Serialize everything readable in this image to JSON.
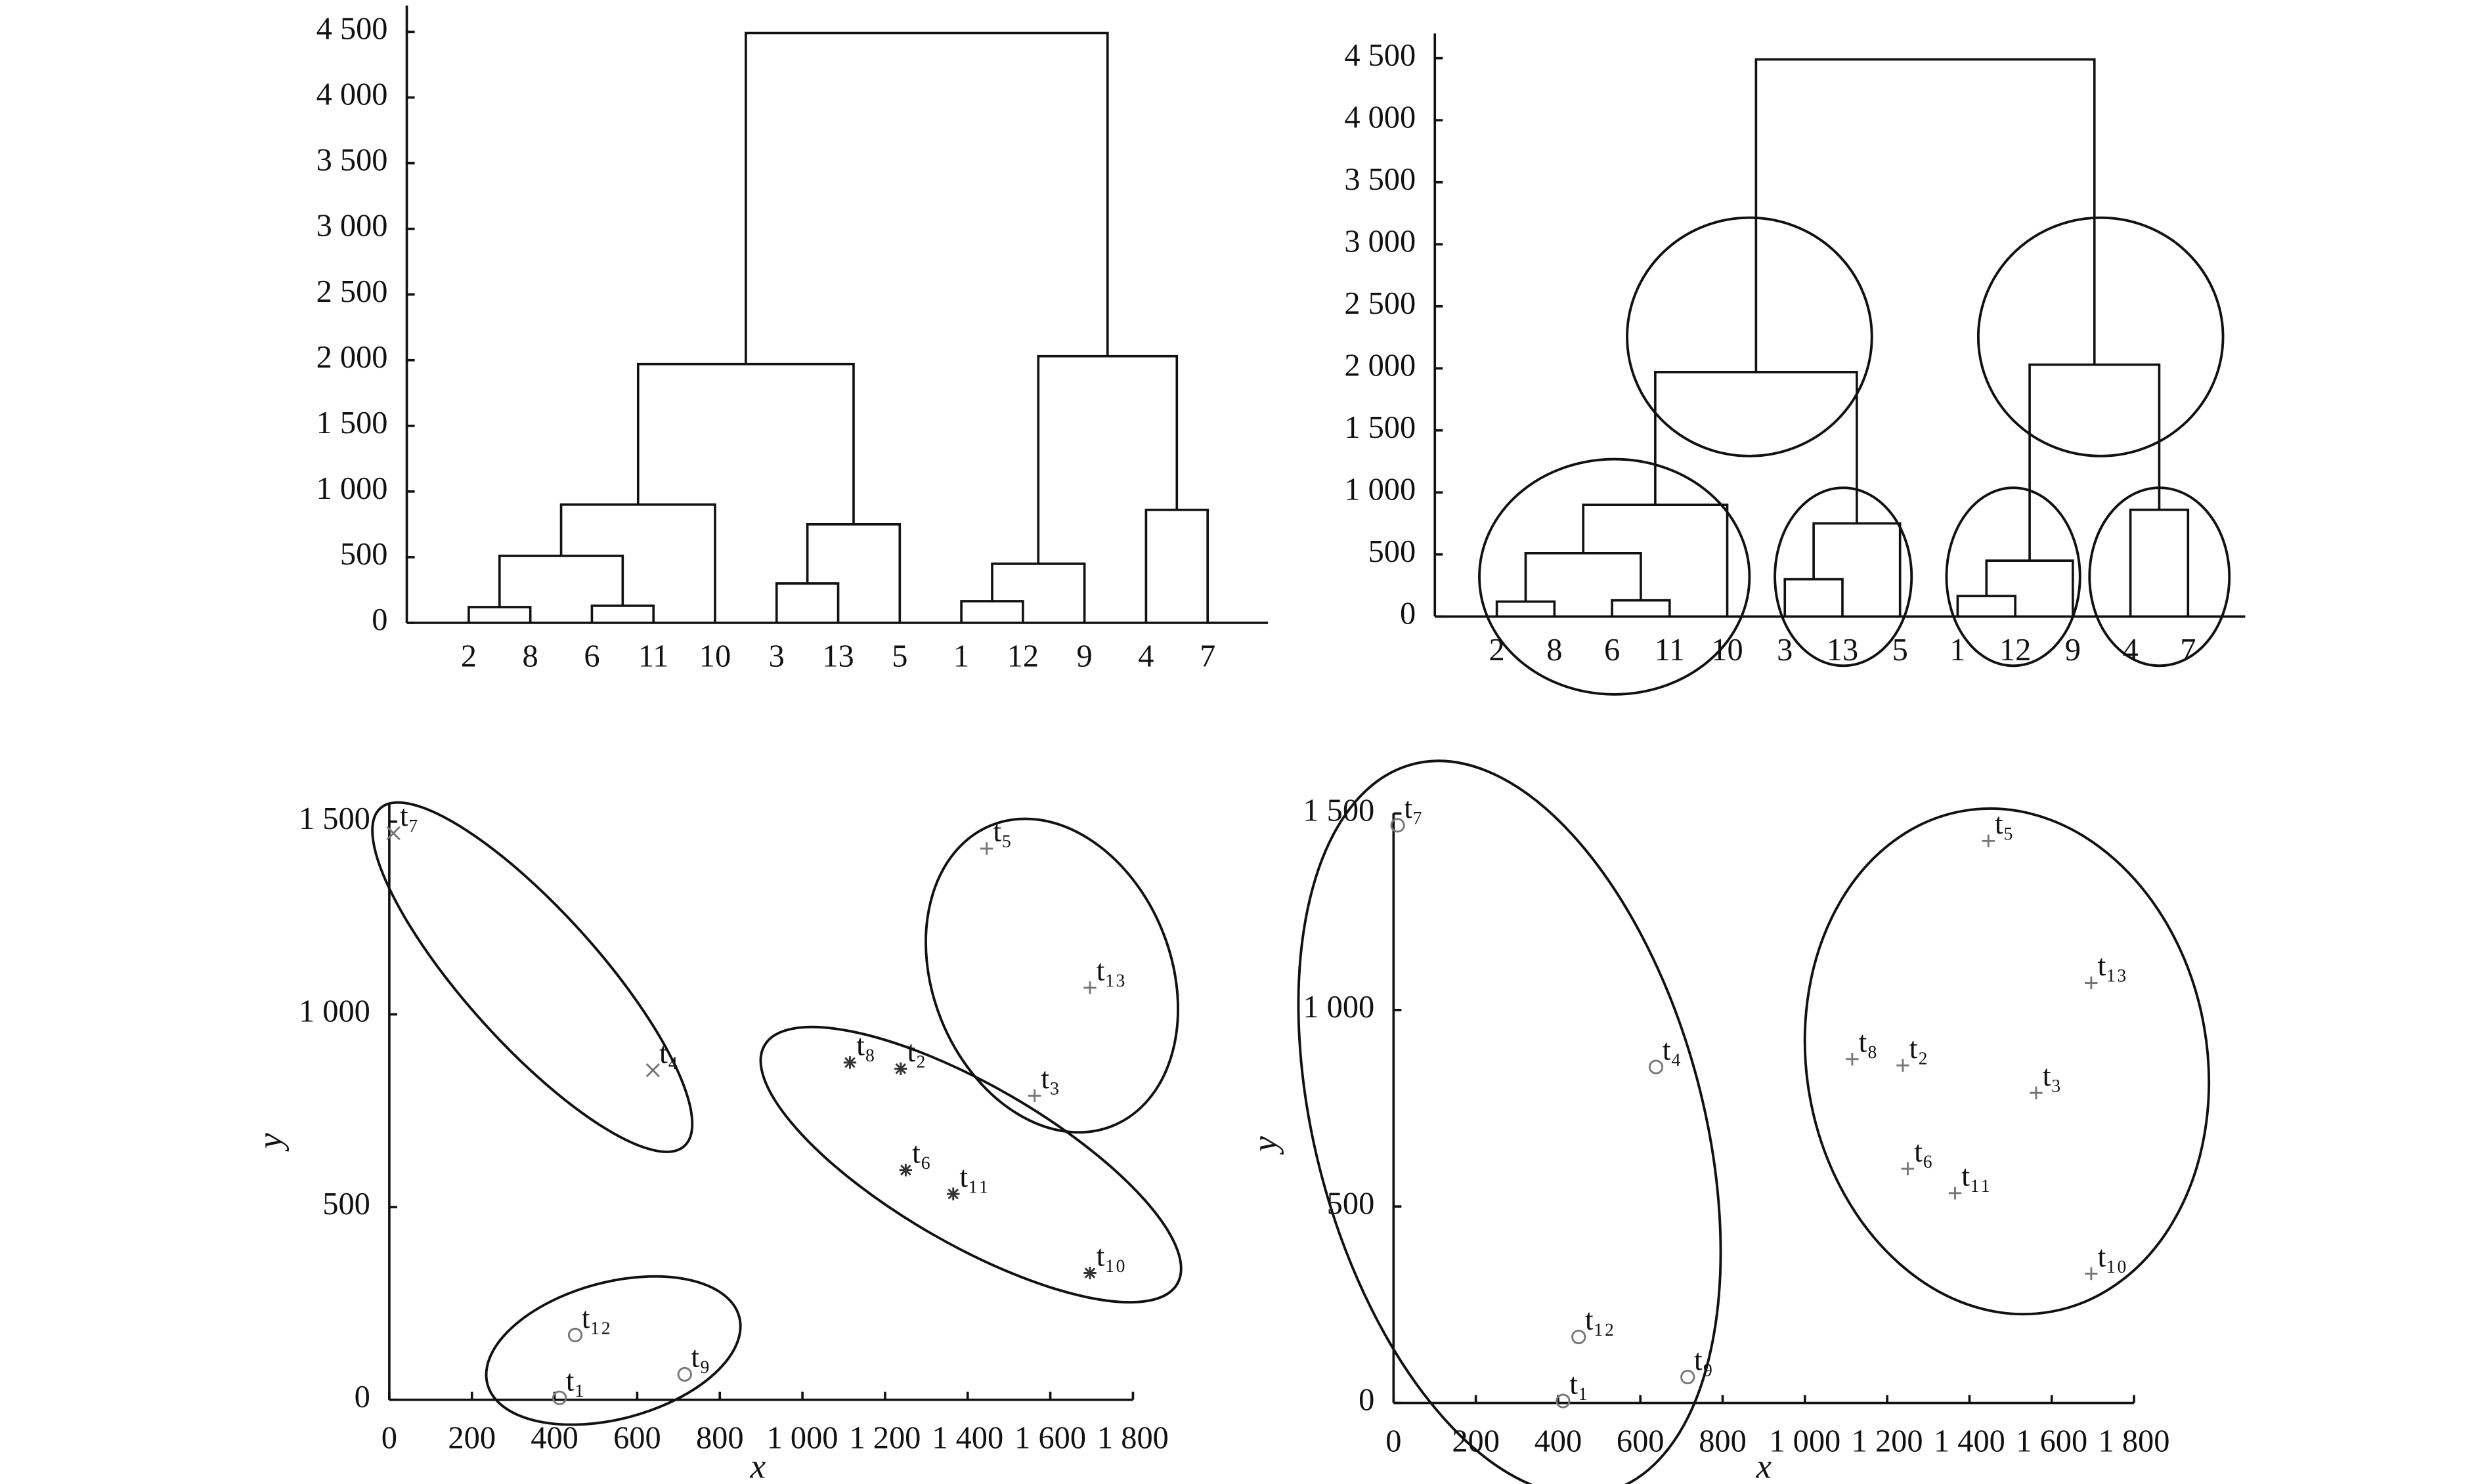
{
  "chart_data": [
    {
      "type": "dendrogram",
      "leaves": [
        "2",
        "8",
        "6",
        "11",
        "10",
        "3",
        "13",
        "5",
        "1",
        "12",
        "9",
        "4",
        "7"
      ],
      "merges": [
        [
          0,
          1,
          120
        ],
        [
          2,
          3,
          130
        ],
        [
          13,
          14,
          510
        ],
        [
          15,
          4,
          900
        ],
        [
          5,
          6,
          300
        ],
        [
          17,
          7,
          750
        ],
        [
          16,
          18,
          1970
        ],
        [
          8,
          9,
          165
        ],
        [
          20,
          10,
          450
        ],
        [
          11,
          12,
          860
        ],
        [
          21,
          22,
          2030
        ],
        [
          19,
          23,
          4490
        ]
      ],
      "ylim": [
        0,
        4700
      ],
      "yticks": [
        0,
        500,
        {
          "value": 1000,
          "label": "1 000"
        },
        {
          "value": 1500,
          "label": "1 500"
        },
        {
          "value": 2000,
          "label": "2 000"
        },
        {
          "value": 2500,
          "label": "2 500"
        },
        {
          "value": 3000,
          "label": "3 000"
        },
        {
          "value": 3500,
          "label": "3 500"
        },
        {
          "value": 4000,
          "label": "4 000"
        },
        {
          "value": 4500,
          "label": "4 500"
        }
      ],
      "color": "#111111"
    },
    {
      "type": "dendrogram",
      "leaves": [
        "2",
        "8",
        "6",
        "11",
        "10",
        "3",
        "13",
        "5",
        "1",
        "12",
        "9",
        "4",
        "7"
      ],
      "merges": [
        [
          0,
          1,
          120
        ],
        [
          2,
          3,
          130
        ],
        [
          13,
          14,
          510
        ],
        [
          15,
          4,
          900
        ],
        [
          5,
          6,
          300
        ],
        [
          17,
          7,
          750
        ],
        [
          16,
          18,
          1970
        ],
        [
          8,
          9,
          165
        ],
        [
          20,
          10,
          450
        ],
        [
          11,
          12,
          860
        ],
        [
          21,
          22,
          2030
        ],
        [
          19,
          23,
          4490
        ]
      ],
      "ylim": [
        0,
        4700
      ],
      "yticks": [
        0,
        500,
        {
          "value": 1000,
          "label": "1 000"
        },
        {
          "value": 1500,
          "label": "1 500"
        },
        {
          "value": 2000,
          "label": "2 000"
        },
        {
          "value": 2500,
          "label": "2 500"
        },
        {
          "value": 3000,
          "label": "3 000"
        },
        {
          "value": 3500,
          "label": "3 500"
        },
        {
          "value": 4000,
          "label": "4 000"
        },
        {
          "value": 4500,
          "label": "4 500"
        }
      ],
      "color": "#111111"
    },
    {
      "type": "scatter",
      "x_label": "x",
      "y_label": "y",
      "xlim": [
        0,
        1800
      ],
      "ylim": [
        0,
        1550
      ],
      "xticks": [
        0,
        200,
        400,
        600,
        800,
        {
          "value": 1000,
          "label": "1 000"
        },
        {
          "value": 1200,
          "label": "1 200"
        },
        {
          "value": 1400,
          "label": "1 400"
        },
        {
          "value": 1600,
          "label": "1 600"
        },
        {
          "value": 1800,
          "label": "1 800"
        }
      ],
      "yticks": [
        0,
        500,
        {
          "value": 1000,
          "label": "1 000"
        },
        {
          "value": 1500,
          "label": "1 500"
        }
      ],
      "series": [
        {
          "marker": "x",
          "color": "#777777",
          "labels": [
            "t₇",
            "t₄"
          ],
          "x": [
            10,
            638
          ],
          "y": [
            1470,
            855
          ]
        },
        {
          "marker": "o",
          "color": "#777777",
          "labels": [
            "t₁₂",
            "t₁",
            "t₉"
          ],
          "x": [
            450,
            412,
            715
          ],
          "y": [
            168,
            5,
            66
          ]
        },
        {
          "marker": "*",
          "color": "#333333",
          "labels": [
            "t₈",
            "t₂",
            "t₆",
            "t₁₁",
            "t₁₀"
          ],
          "x": [
            1115,
            1238,
            1250,
            1365,
            1696
          ],
          "y": [
            875,
            859,
            596,
            534,
            329
          ]
        },
        {
          "marker": "+",
          "color": "#777777",
          "labels": [
            "t₅",
            "t₁₃",
            "t₃"
          ],
          "x": [
            1446,
            1696,
            1562
          ],
          "y": [
            1430,
            1069,
            789
          ]
        }
      ]
    },
    {
      "type": "scatter",
      "x_label": "x",
      "y_label": "y",
      "xlim": [
        0,
        1800
      ],
      "ylim": [
        0,
        1500
      ],
      "xticks": [
        0,
        200,
        400,
        600,
        800,
        {
          "value": 1000,
          "label": "1 000"
        },
        {
          "value": 1200,
          "label": "1 200"
        },
        {
          "value": 1400,
          "label": "1 400"
        },
        {
          "value": 1600,
          "label": "1 600"
        },
        {
          "value": 1800,
          "label": "1 800"
        }
      ],
      "yticks": [
        0,
        500,
        {
          "value": 1000,
          "label": "1 000"
        },
        {
          "value": 1500,
          "label": "1 500"
        }
      ],
      "series": [
        {
          "marker": "o",
          "color": "#777777",
          "labels": [
            "t₇",
            "t₄",
            "t₁₂",
            "t₁",
            "t₉"
          ],
          "x": [
            10,
            638,
            450,
            412,
            715
          ],
          "y": [
            1470,
            855,
            168,
            5,
            66
          ]
        },
        {
          "marker": "+",
          "color": "#777777",
          "labels": [
            "t₅",
            "t₁₃",
            "t₈",
            "t₂",
            "t₃",
            "t₆",
            "t₁₁",
            "t₁₀"
          ],
          "x": [
            1446,
            1696,
            1115,
            1238,
            1562,
            1250,
            1365,
            1696
          ],
          "y": [
            1430,
            1069,
            875,
            859,
            789,
            596,
            534,
            329
          ]
        }
      ]
    }
  ]
}
